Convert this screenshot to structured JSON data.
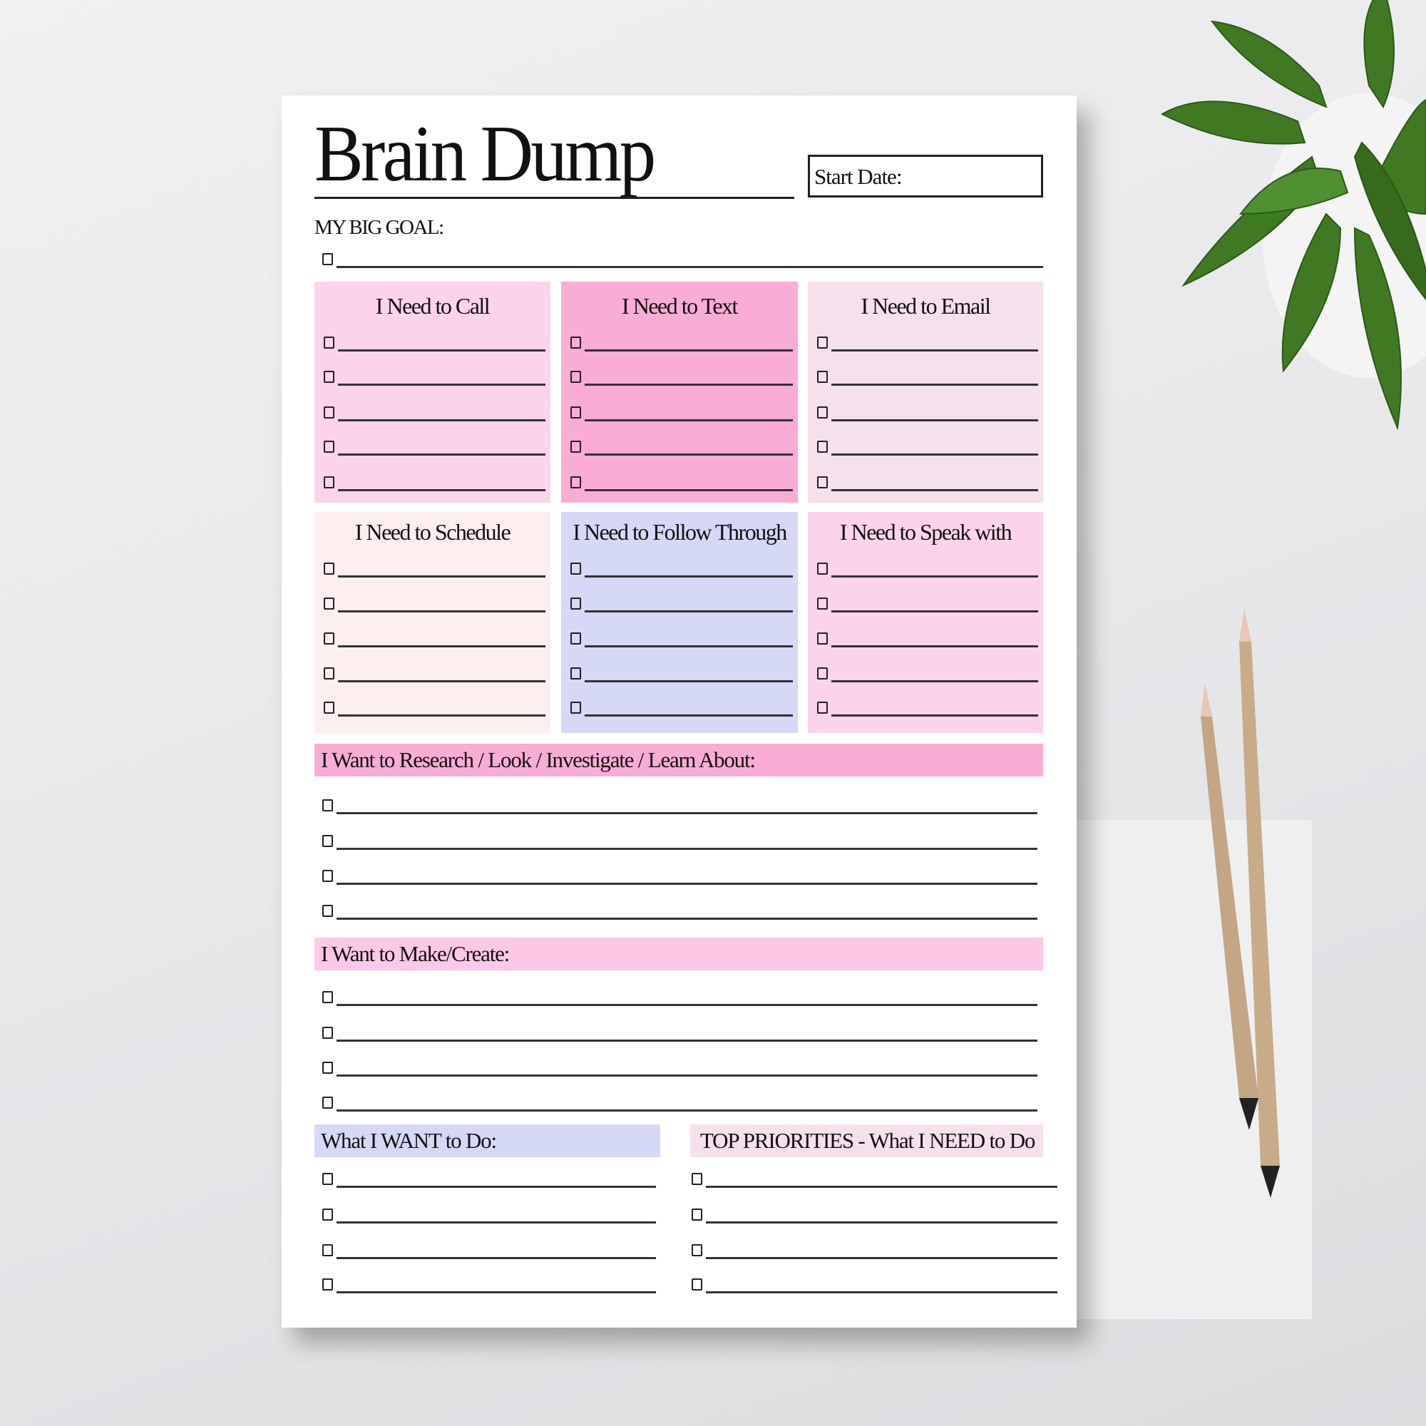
{
  "header": {
    "title": "Brain Dump",
    "start_date_label": "Start Date:"
  },
  "goal": {
    "label": "MY BIG GOAL:"
  },
  "boxes": [
    {
      "title": "I Need to Call",
      "color": "#fdd3eb"
    },
    {
      "title": "I Need to Text",
      "color": "#f9acd6"
    },
    {
      "title": "I Need to Email",
      "color": "#f6e0ec"
    },
    {
      "title": "I Need to Schedule",
      "color": "#fdeef0"
    },
    {
      "title": "I Need to Follow Through",
      "color": "#d5d8f6"
    },
    {
      "title": "I Need to Speak with",
      "color": "#fdd3eb"
    }
  ],
  "sections": {
    "research": {
      "title": "I Want to Research / Look / Investigate / Learn About:",
      "color": "#f9acd6"
    },
    "make": {
      "title": "I Want to Make/Create:",
      "color": "#fcc8e6"
    },
    "want": {
      "title": "What I WANT to Do:",
      "color": "#d5d8f6"
    },
    "priorities": {
      "title": "TOP PRIORITIES - What I NEED to Do",
      "color": "#f6e0ec"
    }
  }
}
